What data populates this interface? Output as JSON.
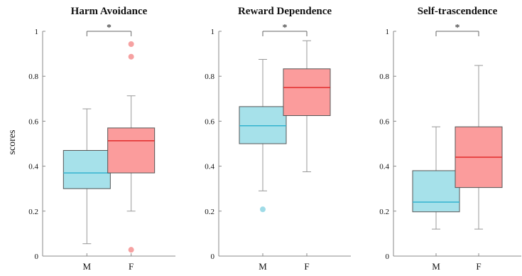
{
  "figure": {
    "ylabel": "scores",
    "colors": {
      "male_fill": "#a6e1ea",
      "male_median": "#33b3cf",
      "female_fill": "#fb9c9c",
      "female_median": "#e12b2b",
      "male_outlier": "#9fdbe7",
      "female_outlier": "#f6a1a1",
      "axis": "#888888",
      "whisker": "#999999"
    }
  },
  "chart_data": [
    {
      "type": "box",
      "title": "Harm Avoidance",
      "categories": [
        "M",
        "F"
      ],
      "ylim": [
        0,
        1
      ],
      "yticks": [
        0,
        0.2,
        0.4,
        0.6,
        0.8,
        1
      ],
      "ytick_labels": [
        "0",
        "0.2",
        "0.4",
        "0.6",
        "0.8",
        "1"
      ],
      "grid": false,
      "boxes": [
        {
          "category": "M",
          "whisker_low": 0.055,
          "q1": 0.3,
          "median": 0.37,
          "q3": 0.47,
          "whisker_high": 0.655,
          "outliers": []
        },
        {
          "category": "F",
          "whisker_low": 0.2,
          "q1": 0.37,
          "median": 0.513,
          "q3": 0.57,
          "whisker_high": 0.713,
          "outliers": [
            0.943,
            0.887,
            0.028
          ]
        }
      ],
      "significance": {
        "between": [
          "M",
          "F"
        ],
        "label": "*"
      }
    },
    {
      "type": "box",
      "title": "Reward Dependence",
      "categories": [
        "M",
        "F"
      ],
      "ylim": [
        0,
        1
      ],
      "yticks": [
        0,
        0.2,
        0.4,
        0.6,
        0.8,
        1
      ],
      "ytick_labels": [
        "0",
        "0.2",
        "0.4",
        "0.6",
        "0.8",
        "1"
      ],
      "grid": false,
      "boxes": [
        {
          "category": "M",
          "whisker_low": 0.29,
          "q1": 0.5,
          "median": 0.58,
          "q3": 0.665,
          "whisker_high": 0.875,
          "outliers": [
            0.208
          ]
        },
        {
          "category": "F",
          "whisker_low": 0.375,
          "q1": 0.625,
          "median": 0.75,
          "q3": 0.833,
          "whisker_high": 0.958,
          "outliers": []
        }
      ],
      "significance": {
        "between": [
          "M",
          "F"
        ],
        "label": "*"
      }
    },
    {
      "type": "box",
      "title": "Self-trascendence",
      "categories": [
        "M",
        "F"
      ],
      "ylim": [
        0,
        1
      ],
      "yticks": [
        0,
        0.2,
        0.4,
        0.6,
        0.8,
        1
      ],
      "ytick_labels": [
        "0",
        "0.2",
        "0.4",
        "0.6",
        "0.8",
        "1"
      ],
      "grid": false,
      "boxes": [
        {
          "category": "M",
          "whisker_low": 0.12,
          "q1": 0.197,
          "median": 0.24,
          "q3": 0.38,
          "whisker_high": 0.575,
          "outliers": []
        },
        {
          "category": "F",
          "whisker_low": 0.12,
          "q1": 0.305,
          "median": 0.44,
          "q3": 0.575,
          "whisker_high": 0.848,
          "outliers": []
        }
      ],
      "significance": {
        "between": [
          "M",
          "F"
        ],
        "label": "*"
      }
    }
  ]
}
